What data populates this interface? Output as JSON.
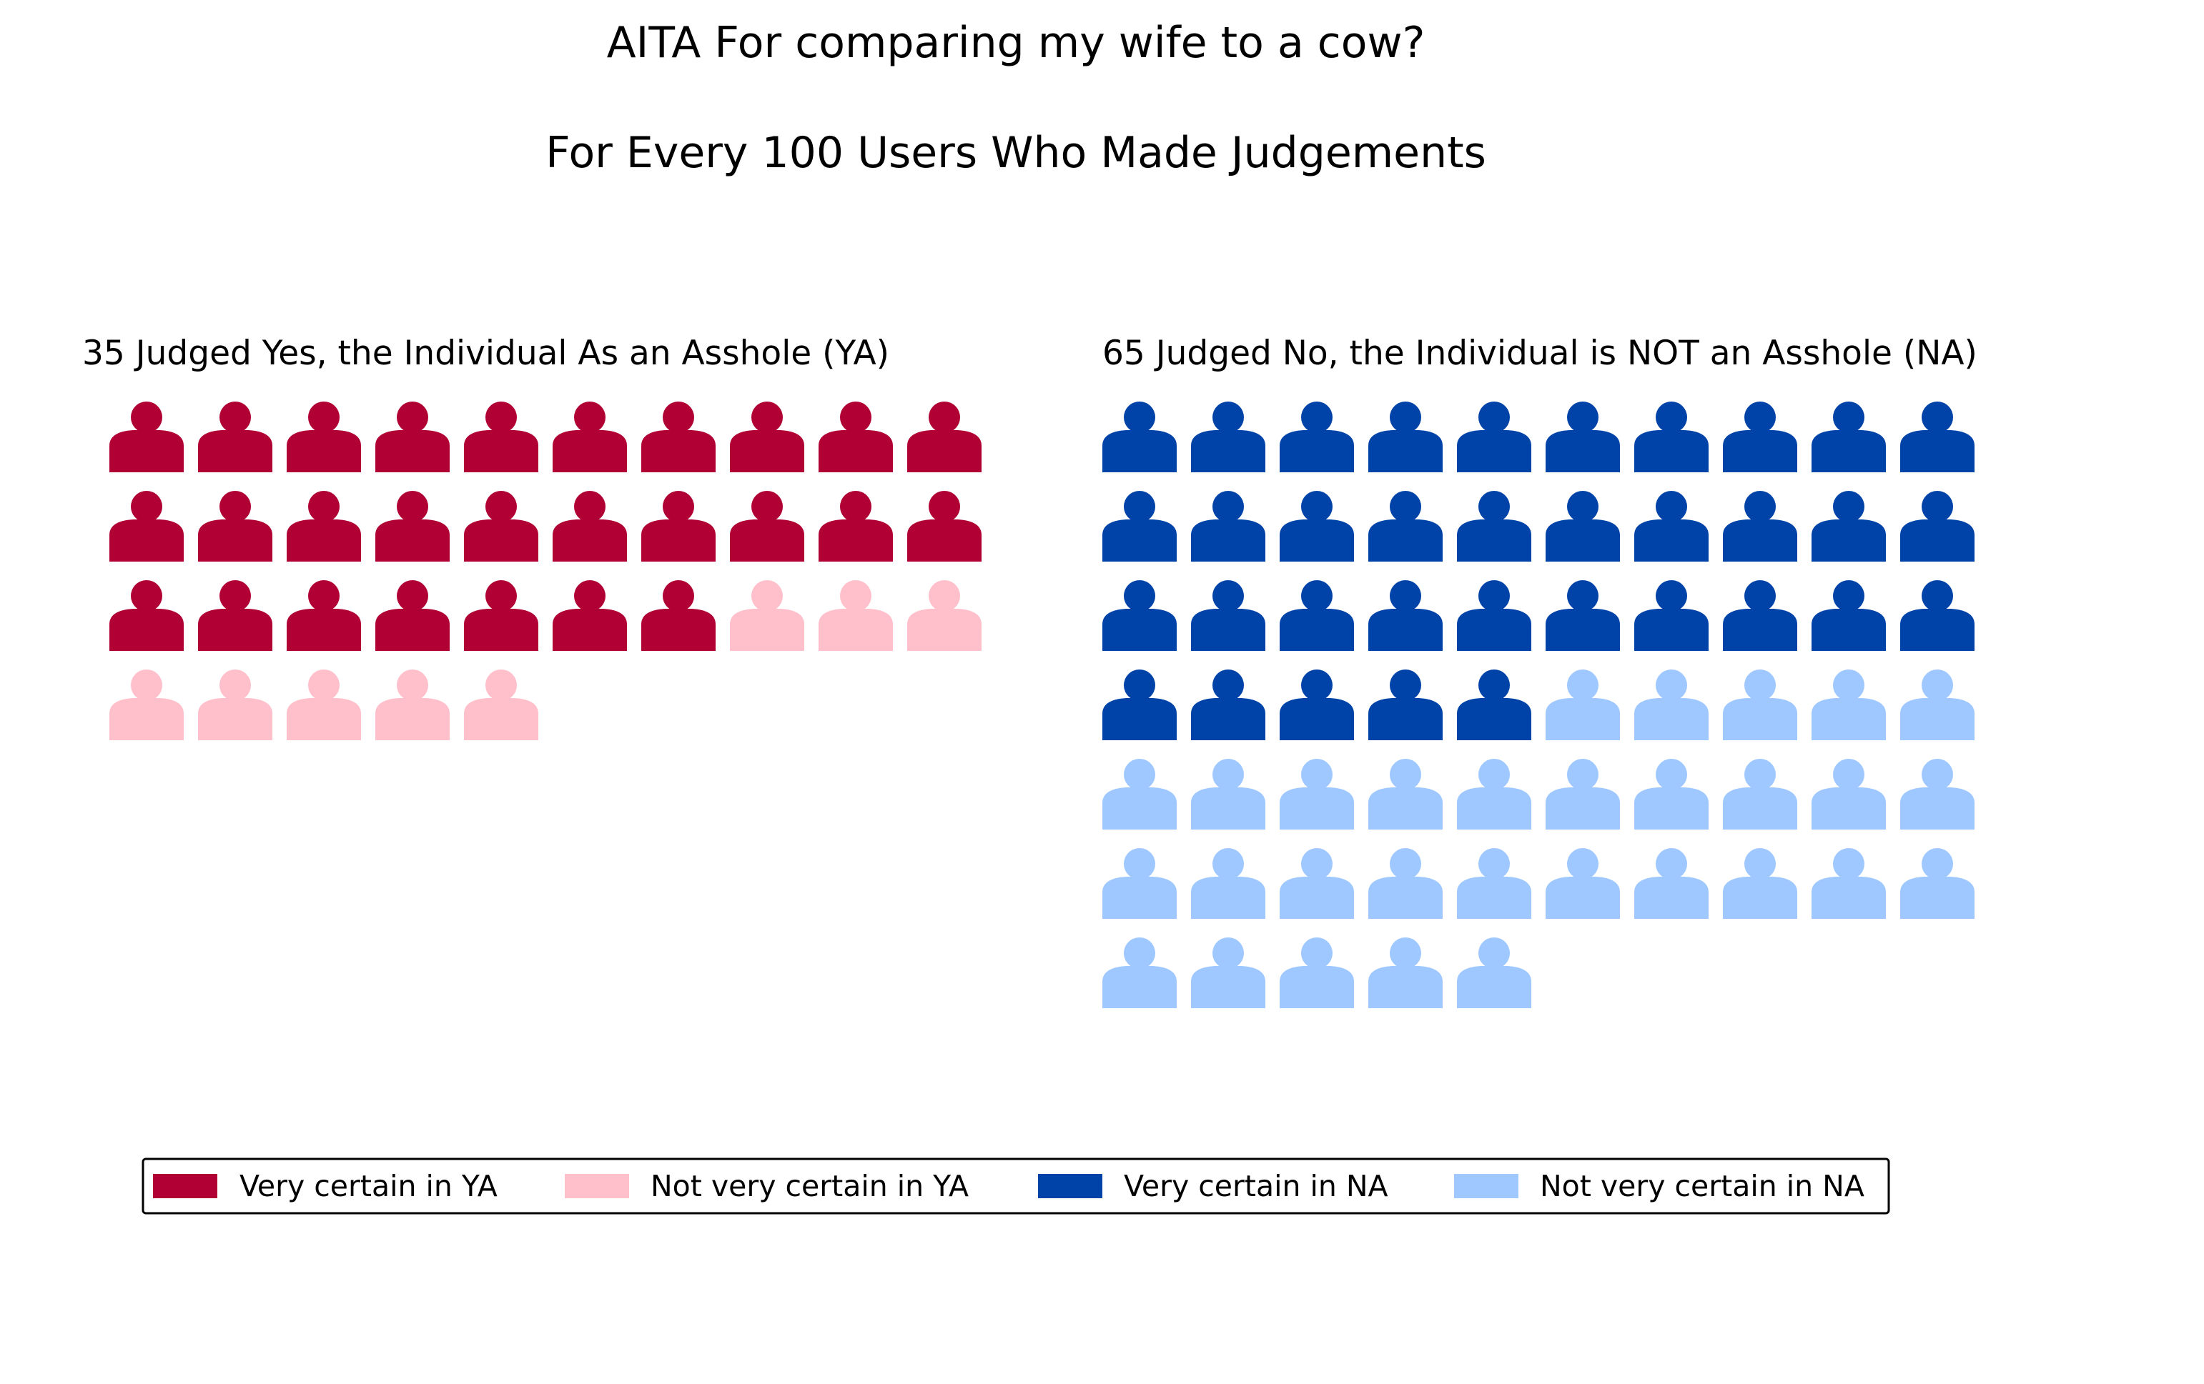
{
  "chart_data": {
    "type": "waffle",
    "title": "AITA For comparing my wife to a cow?",
    "subtitle": "For Every 100 Users Who Made Judgements",
    "panels": [
      {
        "label": "35 Judged Yes, the Individual As an Asshole (YA)",
        "total": 35,
        "columns": 10,
        "segments": [
          {
            "name": "Very certain in YA",
            "count": 27,
            "color": "#b00034"
          },
          {
            "name": "Not very certain in YA",
            "count": 8,
            "color": "#ffc0cb"
          }
        ]
      },
      {
        "label": "65 Judged No, the Individual is NOT an Asshole (NA)",
        "total": 65,
        "columns": 10,
        "segments": [
          {
            "name": "Very certain in NA",
            "count": 35,
            "color": "#0043a8"
          },
          {
            "name": "Not very certain in NA",
            "count": 30,
            "color": "#9ec8ff"
          }
        ]
      }
    ],
    "legend": {
      "position": "bottom",
      "entries": [
        {
          "name": "Very certain in YA",
          "color": "#b00034"
        },
        {
          "name": "Not very certain in YA",
          "color": "#ffc0cb"
        },
        {
          "name": "Very certain in NA",
          "color": "#0043a8"
        },
        {
          "name": "Not very certain in NA",
          "color": "#9ec8ff"
        }
      ]
    },
    "icon": "person-icon"
  }
}
